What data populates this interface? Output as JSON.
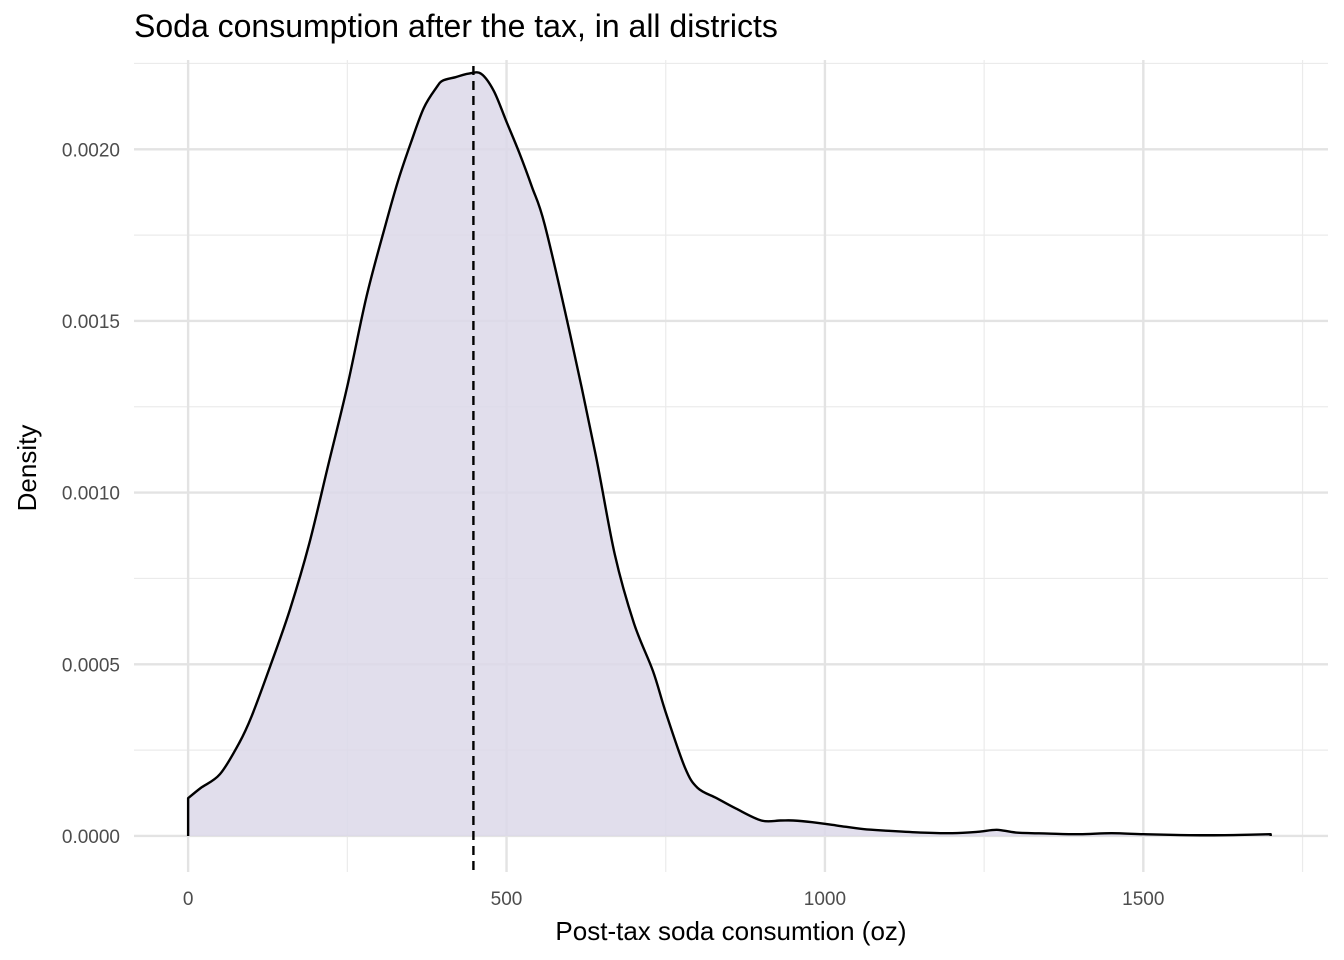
{
  "chart_data": {
    "type": "area",
    "title": "Soda consumption after the tax, in all districts",
    "xlabel": "Post-tax soda consumtion (oz)",
    "ylabel": "Density",
    "xlim": [
      -85,
      1790
    ],
    "ylim": [
      -0.000105,
      0.00226
    ],
    "x_ticks": [
      0,
      500,
      1000,
      1500
    ],
    "x_tick_labels": [
      "0",
      "500",
      "1000",
      "1500"
    ],
    "x_minor_ticks": [
      250,
      750,
      1250,
      1750
    ],
    "y_ticks": [
      0,
      0.0005,
      0.001,
      0.0015,
      0.002
    ],
    "y_tick_labels": [
      "0.0000",
      "0.0005",
      "0.0010",
      "0.0015",
      "0.0020"
    ],
    "y_minor_ticks": [
      0.00025,
      0.00075,
      0.00125,
      0.00175,
      0.00225
    ],
    "grid": true,
    "fill_color": "#dcd8e9",
    "line_color": "#000000",
    "mean_line": {
      "x": 448,
      "style": "dashed",
      "color": "#000000"
    },
    "series": [
      {
        "x": [
          0,
          20,
          50,
          80,
          100,
          130,
          160,
          190,
          220,
          250,
          280,
          310,
          330,
          350,
          370,
          390,
          400,
          420,
          440,
          460,
          480,
          500,
          520,
          540,
          560,
          600,
          640,
          670,
          700,
          730,
          750,
          780,
          800,
          830,
          860,
          900,
          930,
          950,
          980,
          1020,
          1060,
          1100,
          1150,
          1200,
          1240,
          1270,
          1300,
          1350,
          1400,
          1450,
          1500,
          1550,
          1600,
          1650,
          1700
        ],
        "y": [
          0.00011,
          0.00014,
          0.00018,
          0.00027,
          0.00035,
          0.0005,
          0.00066,
          0.00085,
          0.00108,
          0.00131,
          0.00157,
          0.00178,
          0.00191,
          0.00202,
          0.00212,
          0.00218,
          0.0022,
          0.00221,
          0.00222,
          0.00222,
          0.00217,
          0.00208,
          0.00199,
          0.00189,
          0.00178,
          0.00146,
          0.00111,
          0.00082,
          0.00062,
          0.00048,
          0.00036,
          0.0002,
          0.00014,
          0.00011,
          8e-05,
          4.5e-05,
          4.5e-05,
          4.5e-05,
          4e-05,
          3e-05,
          2e-05,
          1.5e-05,
          1e-05,
          8e-06,
          1.2e-05,
          1.8e-05,
          1e-05,
          7e-06,
          5e-06,
          8e-06,
          5e-06,
          3e-06,
          2e-06,
          3e-06,
          5e-06
        ]
      }
    ]
  }
}
